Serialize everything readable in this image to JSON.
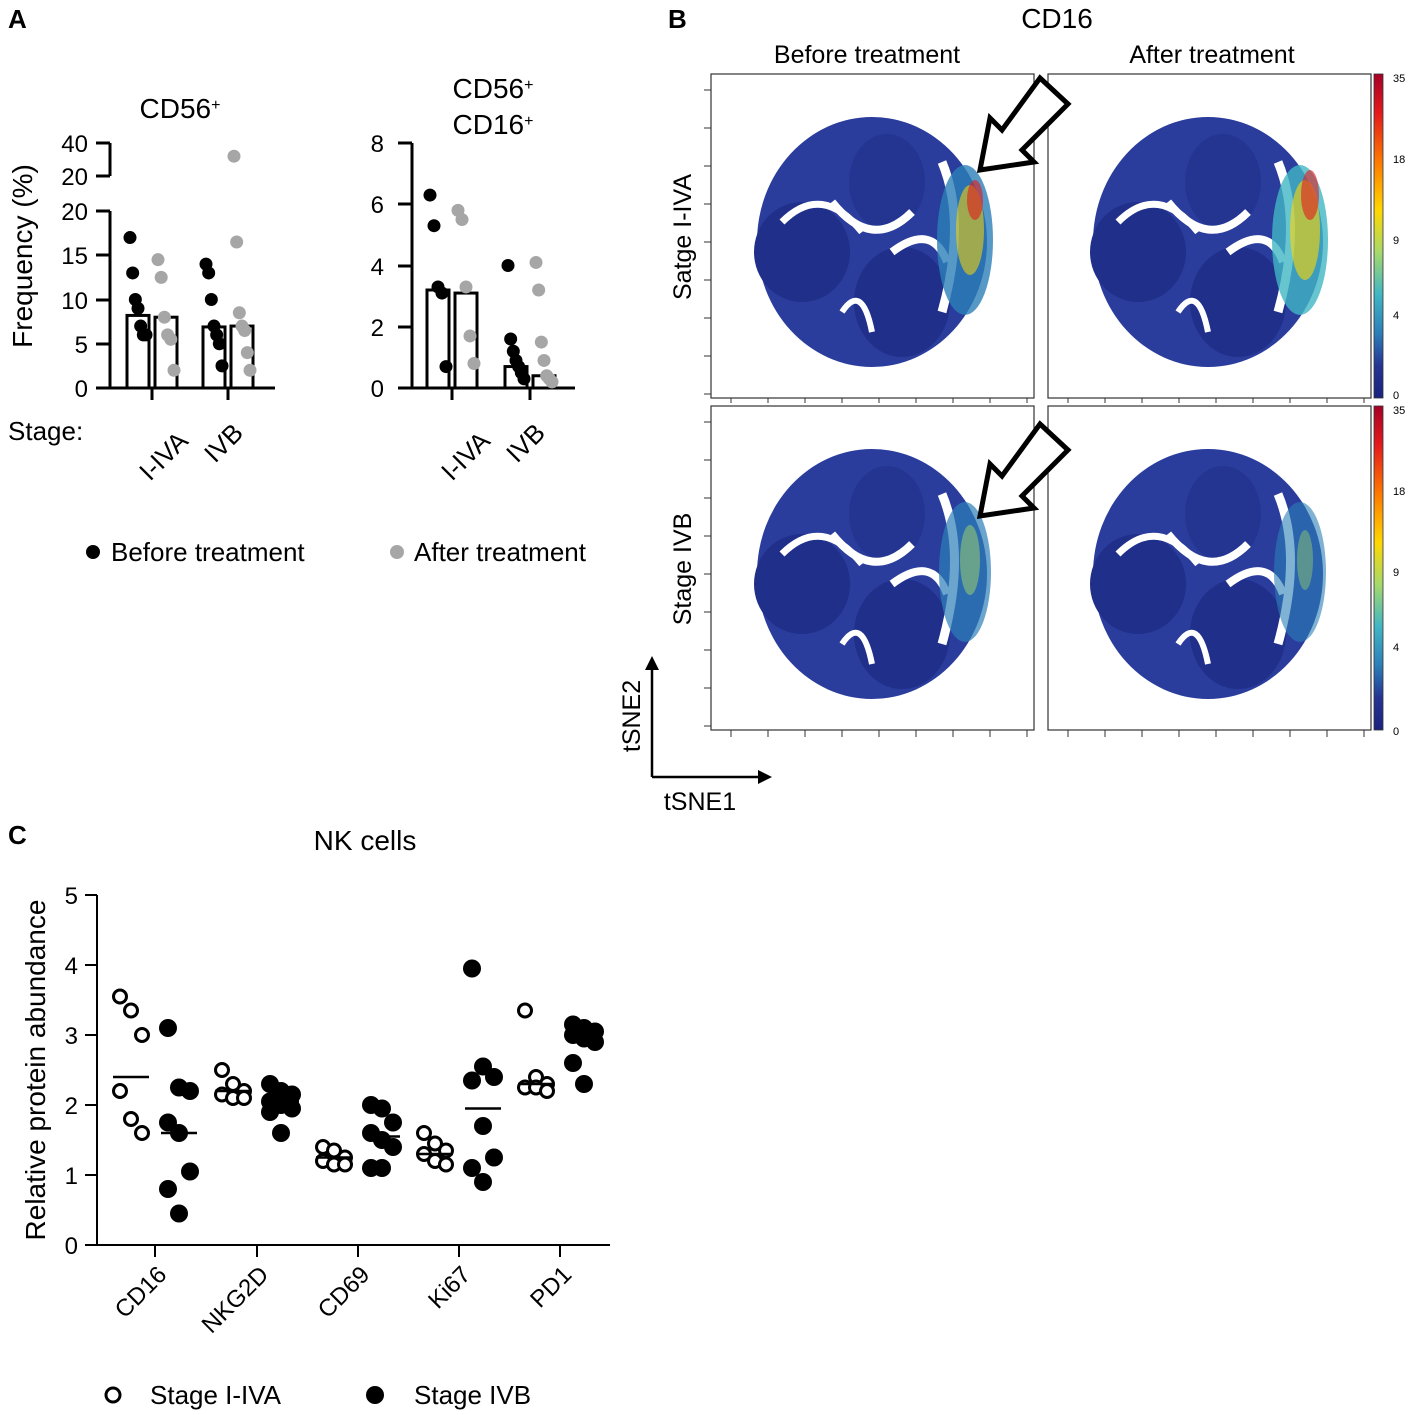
{
  "panels": {
    "a": "A",
    "b": "B",
    "c": "C"
  },
  "panel_b": {
    "title": "CD16",
    "columns": [
      "Before treatment",
      "After treatment"
    ],
    "rows": [
      "Satge I-IVA",
      "Stage IVB"
    ],
    "axis_x": "tSNE1",
    "axis_y": "tSNE2",
    "colorbar_ticks": [
      "35",
      "18",
      "9",
      "4",
      "0"
    ],
    "colorbar_colors": [
      "#a50026",
      "#e41a1c",
      "#ff7f00",
      "#ffd700",
      "#a6d96a",
      "#41b6c4",
      "#2c7fb8",
      "#253494",
      "#1a237e"
    ]
  },
  "stage_label": "Stage:",
  "legend_a": {
    "before": "Before treatment",
    "after": "After treatment",
    "before_color": "#000000",
    "after_color": "#a6a6a6"
  },
  "legend_c": {
    "open": "Stage I-IVA",
    "filled": "Stage IVB"
  },
  "chart_data": [
    {
      "id": "a1",
      "type": "bar",
      "title": "CD56",
      "title_sup": "+",
      "ylabel": "Frequency (%)",
      "categories": [
        "I-IVA",
        "IVB"
      ],
      "y_ticks": [
        "0",
        "5",
        "10",
        "15",
        "20",
        "20",
        "40"
      ],
      "axis_break": true,
      "ylim_lower": [
        0,
        20
      ],
      "ylim_upper": [
        20,
        40
      ],
      "series": [
        {
          "name": "Before treatment",
          "color": "#000000",
          "bar_values": [
            8.2,
            6.9
          ],
          "points": [
            [
              17,
              13,
              10,
              9,
              7,
              6,
              6
            ],
            [
              14,
              13,
              10,
              7,
              6,
              5,
              2.5
            ]
          ]
        },
        {
          "name": "After treatment",
          "color": "#a6a6a6",
          "bar_values": [
            8.0,
            7.0
          ],
          "points": [
            [
              14.5,
              12.5,
              8,
              6,
              5.5,
              2
            ],
            [
              32,
              16.5,
              8.5,
              7,
              6.5,
              4,
              2
            ]
          ]
        }
      ]
    },
    {
      "id": "a2",
      "type": "bar",
      "title_line1": "CD56",
      "title_line2": "CD16",
      "title_sup": "+",
      "categories": [
        "I-IVA",
        "IVB"
      ],
      "ylim": [
        0,
        8
      ],
      "y_ticks": [
        "0",
        "2",
        "4",
        "6",
        "8"
      ],
      "series": [
        {
          "name": "Before treatment",
          "color": "#000000",
          "bar_values": [
            3.2,
            0.7
          ],
          "points": [
            [
              6.3,
              5.3,
              3.3,
              3.1,
              0.7
            ],
            [
              4.0,
              1.6,
              1.2,
              0.9,
              0.7,
              0.5,
              0.3
            ]
          ]
        },
        {
          "name": "After treatment",
          "color": "#a6a6a6",
          "bar_values": [
            3.1,
            0.4
          ],
          "points": [
            [
              5.8,
              5.5,
              3.3,
              1.7,
              0.8
            ],
            [
              4.1,
              3.2,
              1.5,
              0.9,
              0.4,
              0.3,
              0.2
            ]
          ]
        }
      ]
    },
    {
      "id": "c",
      "type": "scatter",
      "title": "NK cells",
      "ylabel": "Relative protein abundance",
      "categories": [
        "CD16",
        "NKG2D",
        "CD69",
        "Ki67",
        "PD1"
      ],
      "ylim": [
        0,
        5
      ],
      "y_ticks": [
        "0",
        "1",
        "2",
        "3",
        "4",
        "5"
      ],
      "series": [
        {
          "name": "Stage I-IVA",
          "fill": "open",
          "means": [
            2.4,
            2.2,
            1.25,
            1.3,
            2.3
          ],
          "points": [
            [
              3.55,
              3.35,
              3.0,
              2.2,
              1.8,
              1.6
            ],
            [
              2.5,
              2.3,
              2.2,
              2.15,
              2.1,
              2.1
            ],
            [
              1.4,
              1.35,
              1.25,
              1.2,
              1.15,
              1.15
            ],
            [
              1.6,
              1.45,
              1.35,
              1.3,
              1.2,
              1.15
            ],
            [
              3.35,
              2.4,
              2.3,
              2.25,
              2.25,
              2.2
            ]
          ]
        },
        {
          "name": "Stage IVB",
          "fill": "filled",
          "means": [
            1.6,
            2.05,
            1.55,
            1.95,
            2.95
          ],
          "points": [
            [
              3.1,
              2.25,
              2.2,
              1.75,
              1.6,
              1.05,
              0.8,
              0.45
            ],
            [
              2.3,
              2.2,
              2.15,
              2.05,
              2.0,
              1.95,
              1.9,
              1.6
            ],
            [
              2.0,
              1.95,
              1.75,
              1.6,
              1.5,
              1.4,
              1.1,
              1.1
            ],
            [
              3.95,
              2.55,
              2.4,
              2.35,
              1.7,
              1.25,
              1.1,
              0.9
            ],
            [
              3.15,
              3.1,
              3.05,
              3.0,
              2.95,
              2.9,
              2.6,
              2.3
            ]
          ]
        }
      ]
    }
  ]
}
